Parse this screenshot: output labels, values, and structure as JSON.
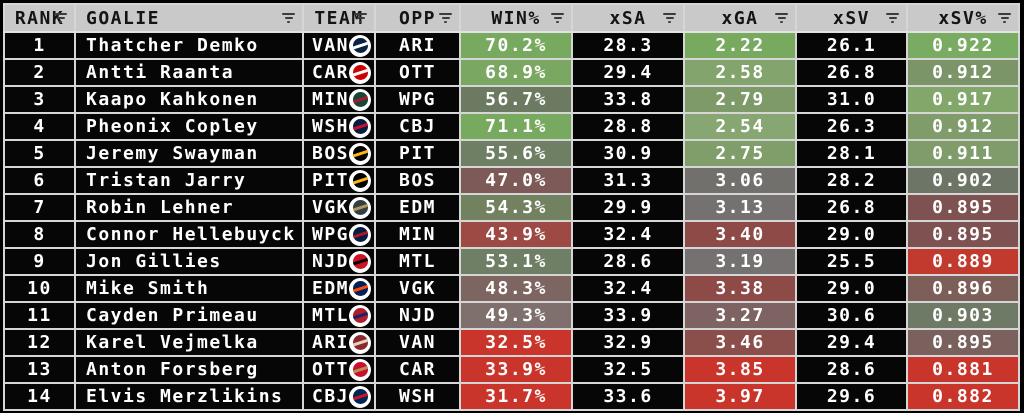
{
  "chart_data": {
    "type": "table",
    "columns": [
      {
        "key": "rank",
        "label": "RANK"
      },
      {
        "key": "goalie",
        "label": "GOALIE"
      },
      {
        "key": "team",
        "label": "TEAM"
      },
      {
        "key": "opp",
        "label": "OPP"
      },
      {
        "key": "win_pct",
        "label": "WIN%"
      },
      {
        "key": "xsa",
        "label": "xSA"
      },
      {
        "key": "xga",
        "label": "xGA"
      },
      {
        "key": "xsv",
        "label": "xSV"
      },
      {
        "key": "xsv_pct",
        "label": "xSV%"
      }
    ],
    "header": {
      "bg": "#c9c9c9",
      "text": "#141414",
      "filter_icon": "filter-icon"
    },
    "palette": {
      "row_bg": "#060606",
      "row_text": "#ffffff",
      "grid_line": "#d6d6d6",
      "positive_green": "#77a95f",
      "negative_red": "#c9342b",
      "neutral_gray": "#757170"
    },
    "rows": [
      {
        "rank": "1",
        "goalie": "Thatcher Demko",
        "team": "VAN",
        "opp": "ARI",
        "win_pct": "70.2%",
        "xsa": "28.3",
        "xga": "2.22",
        "xsv": "26.1",
        "xsv_pct": "0.922",
        "cell_colors": {
          "win_pct": "#77a95f",
          "xga": "#77a95f",
          "xsv_pct": "#7aab62"
        },
        "logo": {
          "name": "vancouver-canucks-logo",
          "primary": "#0a2342",
          "secondary": "#ffffff"
        }
      },
      {
        "rank": "2",
        "goalie": "Antti Raanta",
        "team": "CAR",
        "opp": "OTT",
        "win_pct": "68.9%",
        "xsa": "29.4",
        "xga": "2.58",
        "xsv": "26.8",
        "xsv_pct": "0.912",
        "cell_colors": {
          "win_pct": "#7aa761",
          "xga": "#84a46e",
          "xsv_pct": "#7b9468"
        },
        "logo": {
          "name": "carolina-hurricanes-logo",
          "primary": "#cc0000",
          "secondary": "#ffffff"
        }
      },
      {
        "rank": "3",
        "goalie": "Kaapo Kahkonen",
        "team": "MIN",
        "opp": "WPG",
        "win_pct": "56.7%",
        "xsa": "33.8",
        "xga": "2.79",
        "xsv": "31.0",
        "xsv_pct": "0.917",
        "cell_colors": {
          "win_pct": "#6d7a62",
          "xga": "#7d9a68",
          "xsv_pct": "#83a66b"
        },
        "logo": {
          "name": "minnesota-wild-logo",
          "primary": "#154734",
          "secondary": "#a6192e"
        }
      },
      {
        "rank": "4",
        "goalie": "Pheonix Copley",
        "team": "WSH",
        "opp": "CBJ",
        "win_pct": "71.1%",
        "xsa": "28.8",
        "xga": "2.54",
        "xsv": "26.3",
        "xsv_pct": "0.912",
        "cell_colors": {
          "win_pct": "#77a95f",
          "xga": "#87a671",
          "xsv_pct": "#7f9c6a"
        },
        "logo": {
          "name": "washington-capitals-logo",
          "primary": "#041e42",
          "secondary": "#c8102e"
        }
      },
      {
        "rank": "5",
        "goalie": "Jeremy Swayman",
        "team": "BOS",
        "opp": "PIT",
        "win_pct": "55.6%",
        "xsa": "30.9",
        "xga": "2.75",
        "xsv": "28.1",
        "xsv_pct": "0.911",
        "cell_colors": {
          "win_pct": "#6f7f64",
          "xga": "#809e6a",
          "xsv_pct": "#7f9c6a"
        },
        "logo": {
          "name": "boston-bruins-logo",
          "primary": "#000000",
          "secondary": "#fcb514"
        }
      },
      {
        "rank": "6",
        "goalie": "Tristan Jarry",
        "team": "PIT",
        "opp": "BOS",
        "win_pct": "47.0%",
        "xsa": "31.3",
        "xga": "3.06",
        "xsv": "28.2",
        "xsv_pct": "0.902",
        "cell_colors": {
          "win_pct": "#7d5a58",
          "xga": "#72706c",
          "xsv_pct": "#6d7566"
        },
        "logo": {
          "name": "pittsburgh-penguins-logo",
          "primary": "#000000",
          "secondary": "#fcb514"
        }
      },
      {
        "rank": "7",
        "goalie": "Robin Lehner",
        "team": "VGK",
        "opp": "EDM",
        "win_pct": "54.3%",
        "xsa": "29.9",
        "xga": "3.13",
        "xsv": "26.8",
        "xsv_pct": "0.895",
        "cell_colors": {
          "win_pct": "#728261",
          "xga": "#757170",
          "xsv_pct": "#7e5250"
        },
        "logo": {
          "name": "vegas-golden-knights-logo",
          "primary": "#333f42",
          "secondary": "#b4975a"
        }
      },
      {
        "rank": "8",
        "goalie": "Connor Hellebuyck",
        "team": "WPG",
        "opp": "MIN",
        "win_pct": "43.9%",
        "xsa": "32.4",
        "xga": "3.40",
        "xsv": "29.0",
        "xsv_pct": "0.895",
        "cell_colors": {
          "win_pct": "#9c4a43",
          "xga": "#8d4a46",
          "xsv_pct": "#7e5250"
        },
        "logo": {
          "name": "winnipeg-jets-logo",
          "primary": "#041e42",
          "secondary": "#ac162c"
        }
      },
      {
        "rank": "9",
        "goalie": "Jon Gillies",
        "team": "NJD",
        "opp": "MTL",
        "win_pct": "53.1%",
        "xsa": "28.6",
        "xga": "3.19",
        "xsv": "25.5",
        "xsv_pct": "0.889",
        "cell_colors": {
          "win_pct": "#6f7f66",
          "xga": "#757170",
          "xsv_pct": "#c23a2e"
        },
        "logo": {
          "name": "new-jersey-devils-logo",
          "primary": "#ce1126",
          "secondary": "#000000"
        }
      },
      {
        "rank": "10",
        "goalie": "Mike Smith",
        "team": "EDM",
        "opp": "VGK",
        "win_pct": "48.3%",
        "xsa": "32.4",
        "xga": "3.38",
        "xsv": "29.0",
        "xsv_pct": "0.896",
        "cell_colors": {
          "win_pct": "#7d6561",
          "xga": "#8d4a46",
          "xsv_pct": "#7d5f5a"
        },
        "logo": {
          "name": "edmonton-oilers-logo",
          "primary": "#00205b",
          "secondary": "#ff4c00"
        }
      },
      {
        "rank": "11",
        "goalie": "Cayden Primeau",
        "team": "MTL",
        "opp": "NJD",
        "win_pct": "49.3%",
        "xsa": "33.9",
        "xga": "3.27",
        "xsv": "30.6",
        "xsv_pct": "0.903",
        "cell_colors": {
          "win_pct": "#7f706d",
          "xga": "#7d6462",
          "xsv_pct": "#6e7a66"
        },
        "logo": {
          "name": "montreal-canadiens-logo",
          "primary": "#af1e2d",
          "secondary": "#192168"
        }
      },
      {
        "rank": "12",
        "goalie": "Karel Vejmelka",
        "team": "ARI",
        "opp": "VAN",
        "win_pct": "32.5%",
        "xsa": "32.9",
        "xga": "3.46",
        "xsv": "29.4",
        "xsv_pct": "0.895",
        "cell_colors": {
          "win_pct": "#c9342b",
          "xga": "#8a4f4a",
          "xsv_pct": "#7a615e"
        },
        "logo": {
          "name": "arizona-coyotes-logo",
          "primary": "#8c2633",
          "secondary": "#e2d6b5"
        }
      },
      {
        "rank": "13",
        "goalie": "Anton Forsberg",
        "team": "OTT",
        "opp": "CAR",
        "win_pct": "33.9%",
        "xsa": "32.5",
        "xga": "3.85",
        "xsv": "28.6",
        "xsv_pct": "0.881",
        "cell_colors": {
          "win_pct": "#c9342b",
          "xga": "#c9342b",
          "xsv_pct": "#c9342b"
        },
        "logo": {
          "name": "ottawa-senators-logo",
          "primary": "#c8102e",
          "secondary": "#b79257"
        }
      },
      {
        "rank": "14",
        "goalie": "Elvis Merzlikins",
        "team": "CBJ",
        "opp": "WSH",
        "win_pct": "31.7%",
        "xsa": "33.6",
        "xga": "3.97",
        "xsv": "29.6",
        "xsv_pct": "0.882",
        "cell_colors": {
          "win_pct": "#c9342b",
          "xga": "#c9342b",
          "xsv_pct": "#c9342b"
        },
        "logo": {
          "name": "columbus-blue-jackets-logo",
          "primary": "#002654",
          "secondary": "#ce1126"
        }
      }
    ]
  }
}
